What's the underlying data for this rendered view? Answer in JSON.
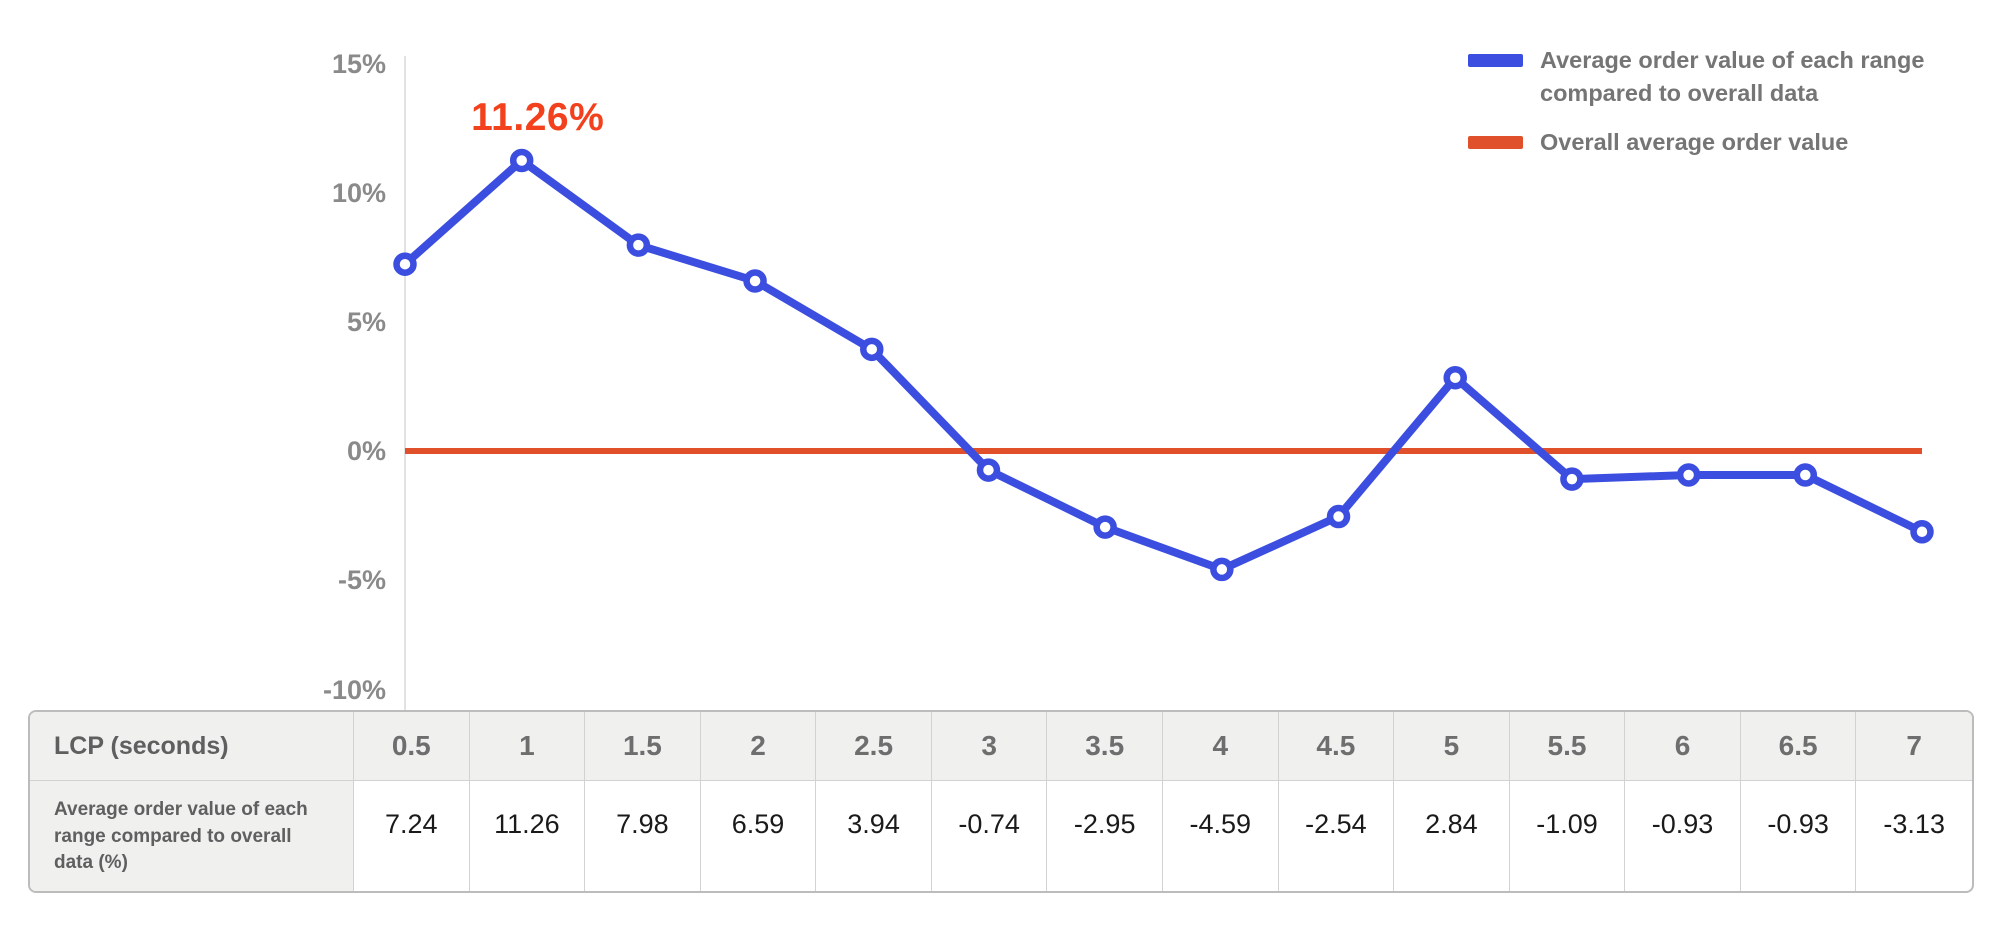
{
  "chart_data": {
    "type": "line",
    "title": "",
    "xlabel": "LCP (seconds)",
    "ylabel": "",
    "categories": [
      "0.5",
      "1",
      "1.5",
      "2",
      "2.5",
      "3",
      "3.5",
      "4",
      "4.5",
      "5",
      "5.5",
      "6",
      "6.5",
      "7"
    ],
    "series": [
      {
        "name": "Average order value of each range compared to overall data",
        "color": "#3b4ee0",
        "values": [
          7.24,
          11.26,
          7.98,
          6.59,
          3.94,
          -0.74,
          -2.95,
          -4.59,
          -2.54,
          2.84,
          -1.09,
          -0.93,
          -0.93,
          -3.13
        ]
      }
    ],
    "baseline": {
      "name": "Overall average order value",
      "value": 0,
      "color": "#e0502b"
    },
    "annotation": {
      "text": "11.26%",
      "x_index": 1,
      "value": 11.26,
      "color": "#f2411c"
    },
    "y_ticks": [
      {
        "label": "15%",
        "value": 15
      },
      {
        "label": "10%",
        "value": 10
      },
      {
        "label": "5%",
        "value": 5
      },
      {
        "label": "0%",
        "value": 0
      },
      {
        "label": "-5%",
        "value": -5
      },
      {
        "label": "-10%",
        "value": -10
      }
    ],
    "ylim": [
      -10,
      15
    ],
    "grid": false,
    "legend_position": "top-right"
  },
  "legend": {
    "items": [
      {
        "label": "Average order value of each range compared to overall data",
        "color": "#3b4ee0"
      },
      {
        "label": "Overall average order value",
        "color": "#e0502b"
      }
    ]
  },
  "table": {
    "corner_label": "LCP (seconds)",
    "columns": [
      "0.5",
      "1",
      "1.5",
      "2",
      "2.5",
      "3",
      "3.5",
      "4",
      "4.5",
      "5",
      "5.5",
      "6",
      "6.5",
      "7"
    ],
    "row_label": "Average order value of each range compared to overall data (%)",
    "values": [
      "7.24",
      "11.26",
      "7.98",
      "6.59",
      "3.94",
      "-0.74",
      "-2.95",
      "-4.59",
      "-2.54",
      "2.84",
      "-1.09",
      "-0.93",
      "-0.93",
      "-3.13"
    ]
  },
  "colors": {
    "series_line": "#3b4ee0",
    "baseline_line": "#e0502b",
    "annotation_text": "#f2411c",
    "axis_line": "#e2e2e2",
    "tick_text": "#8a8a8a",
    "legend_text": "#757575",
    "table_header_bg": "#f0f0ef",
    "table_border": "#d2d2d2"
  }
}
